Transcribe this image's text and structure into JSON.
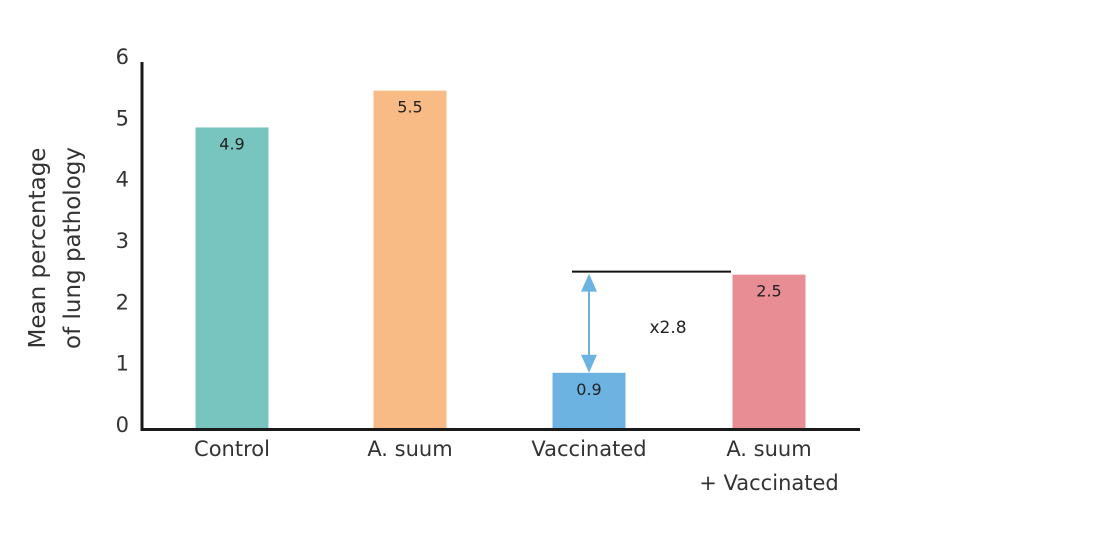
{
  "chart_data": {
    "type": "bar",
    "title": "",
    "xlabel": "",
    "ylabel": [
      "Mean percentage",
      "of lung pathology"
    ],
    "ylim": [
      0,
      6
    ],
    "yticks": [
      "0",
      "1",
      "2",
      "3",
      "4",
      "5",
      "6"
    ],
    "categories": [
      [
        "Control"
      ],
      [
        "A. suum"
      ],
      [
        "Vaccinated"
      ],
      [
        "A. suum",
        "+ Vaccinated"
      ]
    ],
    "values": [
      4.9,
      5.5,
      0.9,
      2.5
    ],
    "labels": [
      "4.9",
      "5.5",
      "0.9",
      "2.5"
    ],
    "colors": [
      "#78c4be",
      "#f9bb86",
      "#6db3e1",
      "#e88d94"
    ],
    "annotation": {
      "text": "x2.8",
      "from_category": 2,
      "to_category": 3
    }
  }
}
